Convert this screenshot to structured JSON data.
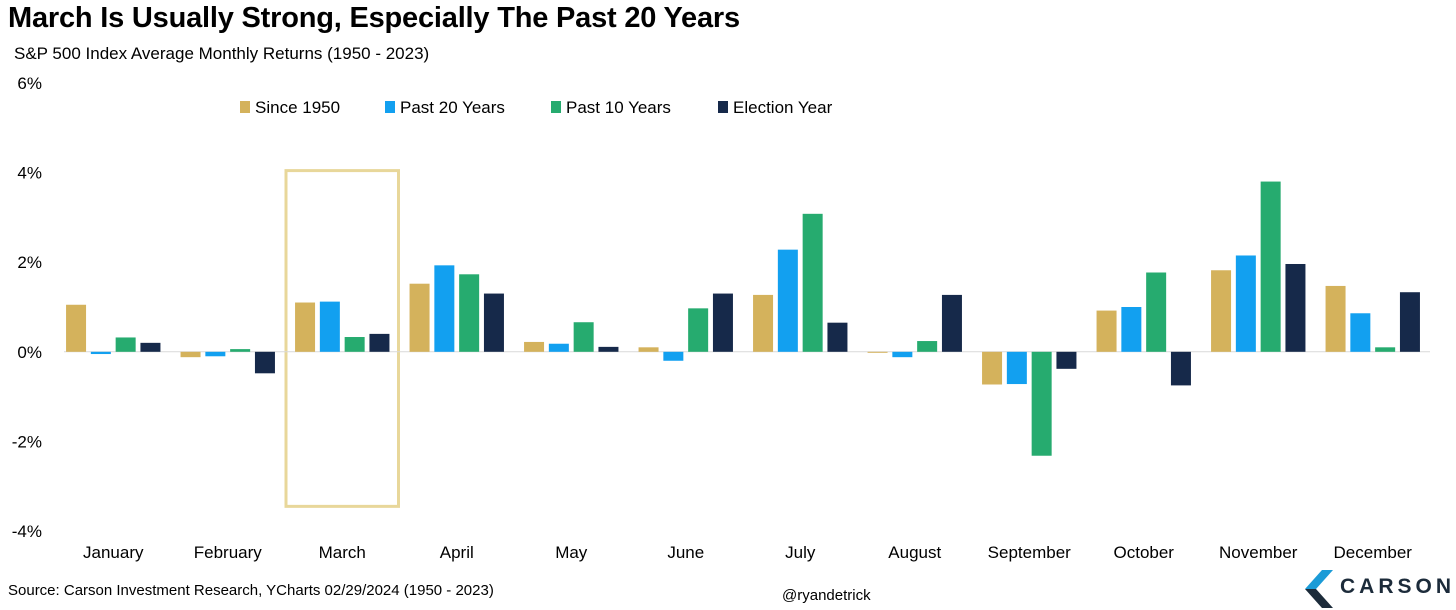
{
  "title": "March Is Usually Strong, Especially The Past 20 Years",
  "subtitle": "S&P 500 Index Average Monthly Returns (1950 - 2023)",
  "footer": {
    "source": "Source: Carson Investment Research, YCharts 02/29/2024 (1950 - 2023)",
    "handle": "@ryandetrick"
  },
  "brand": {
    "name": "CARSON",
    "logo_icon": "carson-chevron-logo",
    "colors": [
      "#1b9bd7",
      "#1c2b3a"
    ]
  },
  "highlight": {
    "category": "March",
    "color": "#e8d79a"
  },
  "chart_data": {
    "type": "bar",
    "categories": [
      "January",
      "February",
      "March",
      "April",
      "May",
      "June",
      "July",
      "August",
      "September",
      "October",
      "November",
      "December"
    ],
    "series": [
      {
        "name": "Since 1950",
        "color": "#d4b25c",
        "values": [
          1.05,
          -0.12,
          1.1,
          1.52,
          0.22,
          0.1,
          1.27,
          -0.02,
          -0.73,
          0.92,
          1.82,
          1.47
        ]
      },
      {
        "name": "Past 20 Years",
        "color": "#12a0f0",
        "values": [
          -0.05,
          -0.1,
          1.12,
          1.93,
          0.18,
          -0.2,
          2.28,
          -0.12,
          -0.72,
          1.0,
          2.15,
          0.86
        ]
      },
      {
        "name": "Past 10 Years",
        "color": "#26ab6f",
        "values": [
          0.32,
          0.06,
          0.33,
          1.73,
          0.66,
          0.97,
          3.08,
          0.24,
          -2.32,
          1.77,
          3.8,
          0.1
        ]
      },
      {
        "name": "Election Year",
        "color": "#16294a",
        "values": [
          0.2,
          -0.48,
          0.4,
          1.3,
          0.11,
          1.3,
          0.65,
          1.27,
          -0.38,
          -0.75,
          1.96,
          1.33
        ]
      }
    ],
    "yticks": [
      6,
      4,
      2,
      0,
      -2,
      -4
    ],
    "ytick_labels": [
      "6%",
      "4%",
      "2%",
      "0%",
      "-2%",
      "-4%"
    ],
    "ylim": [
      -4,
      6
    ],
    "grid": false,
    "legend": "top"
  }
}
